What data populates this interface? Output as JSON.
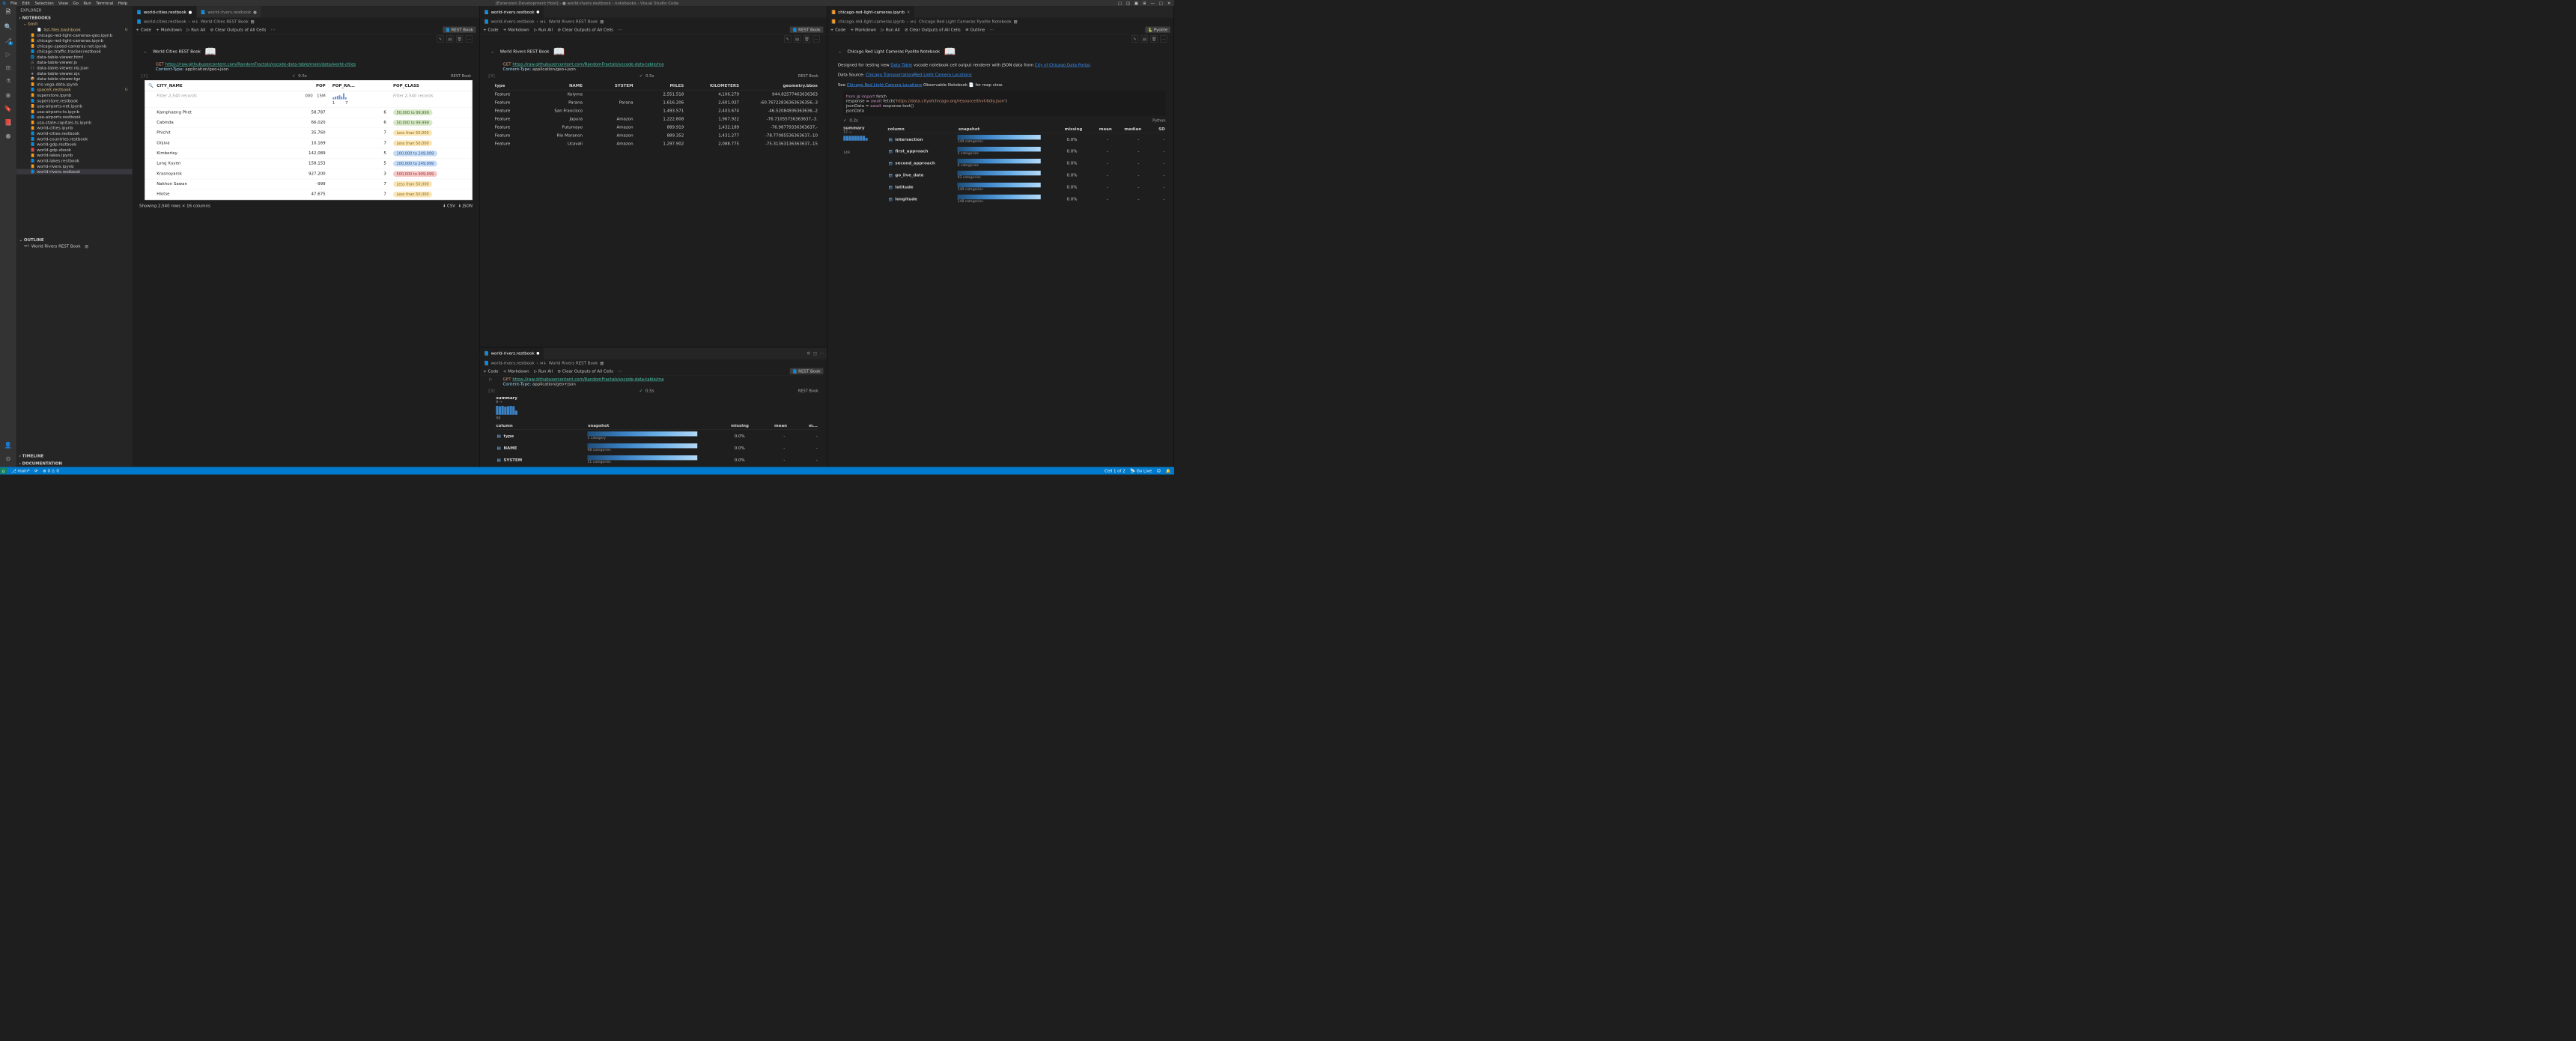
{
  "window_title": "[Extension Development Host] - ● world-rivers.restbook - notebooks - Visual Studio Code",
  "menu": [
    "File",
    "Edit",
    "Selection",
    "View",
    "Go",
    "Run",
    "Terminal",
    "Help"
  ],
  "activity_badges": {
    "scm": "2"
  },
  "explorer_title": "EXPLORER",
  "explorer_section": "NOTEBOOKS",
  "bash_folder": "bash",
  "bash_file": "list-files.bashbook",
  "files": [
    "chicago-red-light-cameras-geo.ipynb",
    "chicago-red-light-cameras.ipynb",
    "chicago-speed-cameras-net.ipynb",
    "chicago-traffic-tracker.restbook",
    "data-table-viewer.html",
    "data-table-viewer.js",
    "data-table-viewer.nb.json",
    "data-table-viewer.ojs",
    "data-table-viewer.tgz",
    "iris-vega-data.ipynb",
    "spaceX.restbook",
    "superstore.ipynb",
    "superstore.restbook",
    "usa-airports-net.ipynb",
    "usa-airports-ts.ipynb",
    "usa-airports.restbook",
    "usa-state-capitals-ts.ipynb",
    "world-cities.ipynb",
    "world-cities.restbook",
    "world-countries.restbook",
    "world-gdp.restbook",
    "world-gdp.xbook",
    "world-lakes.ipynb",
    "world-lakes.restbook",
    "world-rivers.ipynb",
    "world-rivers.restbook"
  ],
  "selected_file": "world-rivers.restbook",
  "spacex_mod": "spaceX.restbook",
  "outline_title": "OUTLINE",
  "outline_item": "World Rivers REST Book",
  "timeline_title": "TIMELINE",
  "docs_title": "DOCUMENTATION",
  "toolbar": {
    "code": "Code",
    "markdown": "Markdown",
    "runall": "Run All",
    "clear": "Clear Outputs of All Cells",
    "outline": "Outline"
  },
  "kernel_rest": "REST Book",
  "kernel_pyolite": "Pyolite",
  "col1": {
    "tab1": "world-cities.restbook",
    "tab2": "world-rivers.restbook",
    "crumb1": "world-cities.restbook",
    "crumb2": "World Cities REST Book",
    "title": "World Cities REST Book",
    "get": "GET",
    "url": "https://raw.githubusercontent.com/RandomFractals/vscode-data-table/main/data/world-cities",
    "ct_key": "Content-Type:",
    "ct_val": "application/geo+json",
    "exin": "[1]",
    "time": "0.5s",
    "cols": [
      "CITY_NAME",
      "POP",
      "POP_RA...",
      "POP_CLASS"
    ],
    "filter": "Filter 2,540 records",
    "spark_labels": [
      "000",
      "15M",
      "1",
      "7"
    ],
    "rows": [
      {
        "c": "Kamphaeng Phet",
        "p": "58,787",
        "r": "6",
        "cl": "50,000 to 99,999",
        "bg": "#d7e9c8",
        "fg": "#4b6b2a"
      },
      {
        "c": "Cabinda",
        "p": "66,020",
        "r": "6",
        "cl": "50,000 to 99,999",
        "bg": "#d7e9c8",
        "fg": "#4b6b2a"
      },
      {
        "c": "Phichit",
        "p": "35,760",
        "r": "7",
        "cl": "Less than 50,000",
        "bg": "#fbe6b6",
        "fg": "#8a6a1a"
      },
      {
        "c": "Onjiva",
        "p": "10,169",
        "r": "7",
        "cl": "Less than 50,000",
        "bg": "#fbe6b6",
        "fg": "#8a6a1a"
      },
      {
        "c": "Kimberley",
        "p": "142,089",
        "r": "5",
        "cl": "100,000 to 249,999",
        "bg": "#c7dcf5",
        "fg": "#2a5a9a"
      },
      {
        "c": "Long Xuyen",
        "p": "158,153",
        "r": "5",
        "cl": "100,000 to 249,999",
        "bg": "#c7dcf5",
        "fg": "#2a5a9a"
      },
      {
        "c": "Krasnoyarsk",
        "p": "927,200",
        "r": "3",
        "cl": "500,000 to 999,999",
        "bg": "#f7c7c7",
        "fg": "#a03a3a"
      },
      {
        "c": "Nakhon Sawan",
        "p": "-999",
        "r": "7",
        "cl": "Less than 50,000",
        "bg": "#fbe6b6",
        "fg": "#8a6a1a"
      },
      {
        "c": "Hlotse",
        "p": "47,675",
        "r": "7",
        "cl": "Less than 50,000",
        "bg": "#fbe6b6",
        "fg": "#8a6a1a"
      }
    ],
    "footer": "Showing 2,540 rows × 16 columns",
    "csv": "CSV",
    "json": "JSON"
  },
  "col2": {
    "tab": "world-rivers.restbook",
    "crumb1": "world-rivers.restbook",
    "crumb2": "World Rivers REST Book",
    "title": "World Rivers REST Book",
    "get": "GET",
    "url": "https://raw.githubusercontent.com/RandomFractals/vscode-data-table/ma",
    "ct_key": "Content-Type:",
    "ct_val": "application/geo+json",
    "exin": "[3]",
    "time": "0.5s",
    "cols": [
      "type",
      "NAME",
      "SYSTEM",
      "MILES",
      "KILOMETERS",
      "geometry.bbox"
    ],
    "rows": [
      [
        "Feature",
        "Kolyma",
        "",
        "2,551.518",
        "4,106.279",
        "944.82577463636363"
      ],
      [
        "Feature",
        "Parana",
        "Parana",
        "1,616.206",
        "2,601.037",
        "-60.76722836363636356,-3"
      ],
      [
        "Feature",
        "San Francisco",
        "",
        "1,493.571",
        "2,403.674",
        "-46.52084936363636,-2"
      ],
      [
        "Feature",
        "Japura",
        "Amazon",
        "1,222.808",
        "1,967.922",
        "-76.71055736363637,-3."
      ],
      [
        "Feature",
        "Putumayo",
        "Amazon",
        "889.919",
        "1,432.189",
        "-76.98779336363637,-"
      ],
      [
        "Feature",
        "Rio Maranon",
        "Amazon",
        "889.352",
        "1,431.277",
        "-78.77085536363637,-10"
      ],
      [
        "Feature",
        "Ucavali",
        "Amazon",
        "1,297.902",
        "2,088.775",
        "-75.31363136363637,-15"
      ]
    ],
    "panel2_tab": "world-rivers.restbook",
    "panel2_time": "0.5s",
    "sum_label": "summary",
    "sum_arrow": "8 →",
    "sum_98": "98",
    "sum_cols": [
      "column",
      "snapshot",
      "missing",
      "mean",
      "m..."
    ],
    "sum_rows": [
      {
        "n": "type",
        "cat": "1 category",
        "m": "0.0%"
      },
      {
        "n": "NAME",
        "cat": "98 categories",
        "m": "0.0%"
      },
      {
        "n": "SYSTEM",
        "cat": "11 categories",
        "m": "0.0%"
      }
    ]
  },
  "col3": {
    "tab": "chicago-red-light-cameras.ipynb",
    "crumb1": "chicago-red-light-cameras.ipynb",
    "crumb2": "Chicago Red Light Cameras Pyolite Notebook",
    "title": "Chicago Red Light Cameras Pyolite Notebook",
    "md1_a": "Designed for testing new ",
    "md1_b": "Data Table",
    "md1_c": " vscode notebook cell output renderer with JSON data from ",
    "md1_d": "City of Chicago Data Portal",
    "md1_e": ".",
    "md2_a": "Data Source: ",
    "md2_b": "Chicago Transportation",
    "md2_c": "/",
    "md2_d": "Red Light Camera Locations",
    "md3_a": "See ",
    "md3_b": "Chicago Red Light Camera Locations",
    "md3_c": " Observable Notebook 📄 for map view.",
    "code": [
      {
        "a": "from",
        "b": " js ",
        "c": "import",
        "d": " fetch"
      },
      {
        "a": "response = ",
        "b": "await",
        "c": " fetch(",
        "d": "'https://data.cityofchicago.org/resource/thvf-6diy.json'",
        "e": ")"
      },
      {
        "a": "jsonData = ",
        "b": "await",
        "c": " response.text()"
      },
      {
        "a": "jsonData"
      }
    ],
    "time": "0.2s",
    "lang": "Python",
    "sum_label": "summary",
    "sum_arrow": "12 →",
    "sum_149": "149",
    "sum_cols": [
      "column",
      "snapshot",
      "missing",
      "mean",
      "median",
      "SD"
    ],
    "sum_rows": [
      {
        "n": "intersection",
        "cat": "149 categories",
        "m": "0.0%"
      },
      {
        "n": "first_approach",
        "cat": "5 categories",
        "m": "0.0%"
      },
      {
        "n": "second_approach",
        "cat": "6 categories",
        "m": "0.0%"
      },
      {
        "n": "go_live_date",
        "cat": "92 categories",
        "m": "0.0%"
      },
      {
        "n": "latitude",
        "cat": "149 categories",
        "m": "0.0%"
      },
      {
        "n": "longitude",
        "cat": "148 categories",
        "m": "0.0%"
      }
    ]
  },
  "status": {
    "remote": "⌂",
    "branch": "main*",
    "sync": "⟳",
    "errors": "0",
    "warnings": "0",
    "cell": "Cell 1 of 2",
    "golive": "Go Live",
    "bell": "🔔"
  }
}
